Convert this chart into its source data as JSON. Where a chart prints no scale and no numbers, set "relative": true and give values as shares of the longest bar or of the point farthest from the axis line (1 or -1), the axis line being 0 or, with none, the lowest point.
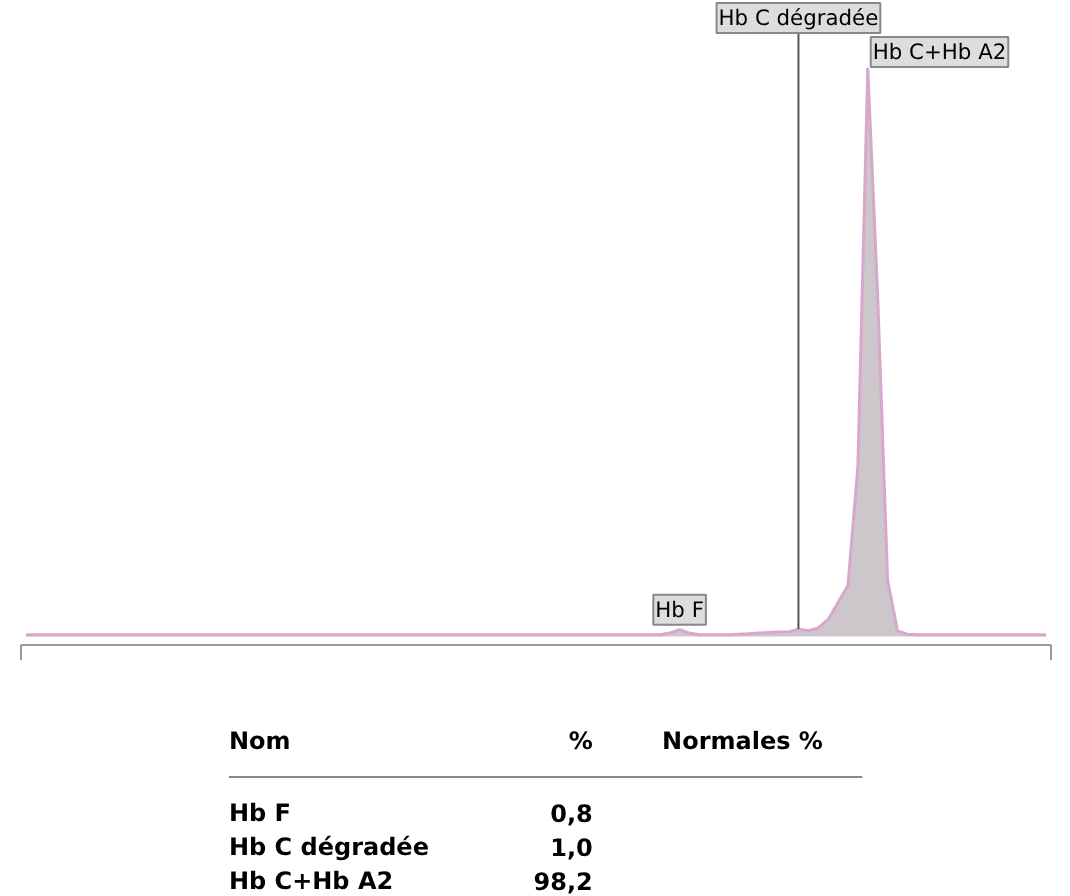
{
  "chart_data": [
    {
      "type": "area",
      "relative": true,
      "tick_labels": false,
      "grid": false,
      "annotations": [
        "Hb F",
        "Hb C dégradée",
        "Hb C+Hb A2"
      ],
      "categories": [
        null,
        null,
        null,
        null,
        null,
        null,
        null,
        null,
        null,
        null,
        null,
        null,
        null,
        null,
        null,
        null,
        null,
        null,
        null,
        null,
        null,
        null,
        null,
        null,
        null,
        null,
        null,
        null,
        null,
        null,
        null,
        null,
        null,
        null,
        null,
        null,
        null,
        null,
        null,
        null,
        null,
        null,
        null,
        null,
        null,
        null,
        null,
        null,
        null,
        null,
        null,
        null,
        null,
        null,
        null,
        null,
        null,
        null,
        null,
        null,
        null,
        null,
        null,
        null,
        null,
        null,
        null,
        null,
        null,
        null,
        null,
        null,
        null,
        null,
        null,
        null,
        null,
        null,
        null,
        null,
        null,
        null,
        null,
        null,
        null,
        null,
        null,
        null,
        null,
        null,
        null,
        null,
        null,
        null,
        null,
        null,
        null,
        null,
        null,
        null,
        null,
        null,
        null,
        null
      ],
      "series": [
        {
          "color": "#d8a8cc",
          "values": [
            0.003,
            0.003,
            0.003,
            0.003,
            0.003,
            0.003,
            0.003,
            0.003,
            0.003,
            0.003,
            0.003,
            0.003,
            0.003,
            0.003,
            0.003,
            0.003,
            0.003,
            0.003,
            0.003,
            0.003,
            0.003,
            0.003,
            0.003,
            0.003,
            0.003,
            0.003,
            0.003,
            0.003,
            0.003,
            0.003,
            0.003,
            0.003,
            0.003,
            0.003,
            0.003,
            0.003,
            0.003,
            0.003,
            0.003,
            0.003,
            0.003,
            0.003,
            0.003,
            0.003,
            0.003,
            0.003,
            0.003,
            0.003,
            0.003,
            0.003,
            0.003,
            0.003,
            0.003,
            0.003,
            0.003,
            0.003,
            0.003,
            0.003,
            0.003,
            0.003,
            0.003,
            0.003,
            0.003,
            0.003,
            0.003,
            0.006,
            0.012,
            0.006,
            0.003,
            0.003,
            0.003,
            0.003,
            0.004,
            0.005,
            0.006,
            0.007,
            0.008,
            0.008,
            0.013,
            0.01,
            0.015,
            0.03,
            0.06,
            0.09,
            0.3,
            1.0,
            0.6,
            0.1,
            0.01,
            0.004,
            0.003,
            0.003,
            0.003,
            0.003,
            0.003,
            0.003,
            0.003,
            0.003,
            0.003,
            0.003,
            0.003,
            0.003,
            0.003,
            0.003
          ]
        }
      ]
    },
    {
      "type": "other",
      "categories": [
        "Hb F",
        "Hb C dégradée",
        "Hb C+Hb A2"
      ],
      "value_labels": [
        "0,8",
        "1,0",
        "98,2"
      ],
      "annotations": [
        "Nom",
        "%",
        "Normales %"
      ]
    }
  ]
}
